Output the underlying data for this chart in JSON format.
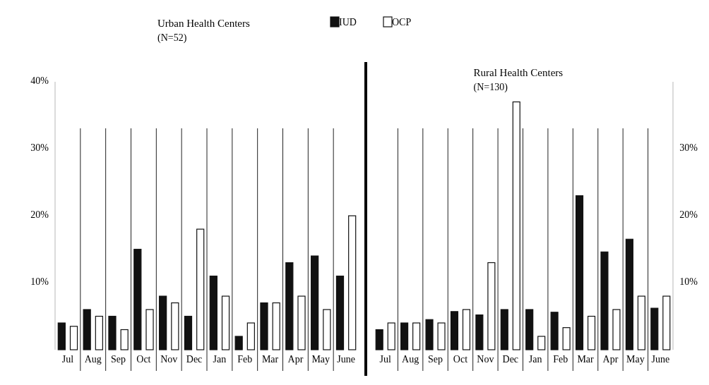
{
  "chart_data": [
    {
      "type": "bar",
      "title": "Urban Health Centers",
      "subtitle": "(N=52)",
      "categories": [
        "Jul",
        "Aug",
        "Sep",
        "Oct",
        "Nov",
        "Dec",
        "Jan",
        "Feb",
        "Mar",
        "Apr",
        "May",
        "June"
      ],
      "series": [
        {
          "name": "IUD",
          "color": "#111111",
          "values": [
            4,
            6,
            5,
            15,
            8,
            5,
            11,
            2,
            7,
            13,
            14,
            11
          ]
        },
        {
          "name": "OCP",
          "color": "#ffffff",
          "values": [
            3.5,
            5,
            3,
            6,
            7,
            18,
            8,
            4,
            7,
            8,
            6,
            20
          ]
        }
      ],
      "ylim": [
        0,
        40
      ],
      "yticks": [
        {
          "value": 10,
          "label": "10%"
        },
        {
          "value": 20,
          "label": "20%"
        },
        {
          "value": 30,
          "label": "30%"
        },
        {
          "value": 40,
          "label": "40%"
        }
      ],
      "grid": "x",
      "legend": "top right"
    },
    {
      "type": "bar",
      "title": "Rural Health Centers",
      "subtitle": "(N=130)",
      "categories": [
        "Jul",
        "Aug",
        "Sep",
        "Oct",
        "Nov",
        "Dec",
        "Jan",
        "Feb",
        "Mar",
        "Apr",
        "May",
        "June"
      ],
      "series": [
        {
          "color": "#111111",
          "axis": "y2",
          "values": [
            3,
            4,
            4.5,
            5.7,
            5.2,
            6,
            6,
            5.6,
            23,
            14.6,
            16.5,
            6.2
          ]
        },
        {
          "color": "#ffffff",
          "axis": "y2",
          "values": [
            4,
            4,
            4,
            6,
            13,
            37,
            2,
            3.3,
            5,
            6,
            8,
            8
          ]
        }
      ],
      "y2lim": [
        0,
        40
      ],
      "y2ticks": [
        {
          "value": 10,
          "label": "10%"
        },
        {
          "value": 20,
          "label": "20%"
        },
        {
          "value": 30,
          "label": "30%"
        }
      ],
      "grid": "x"
    }
  ]
}
